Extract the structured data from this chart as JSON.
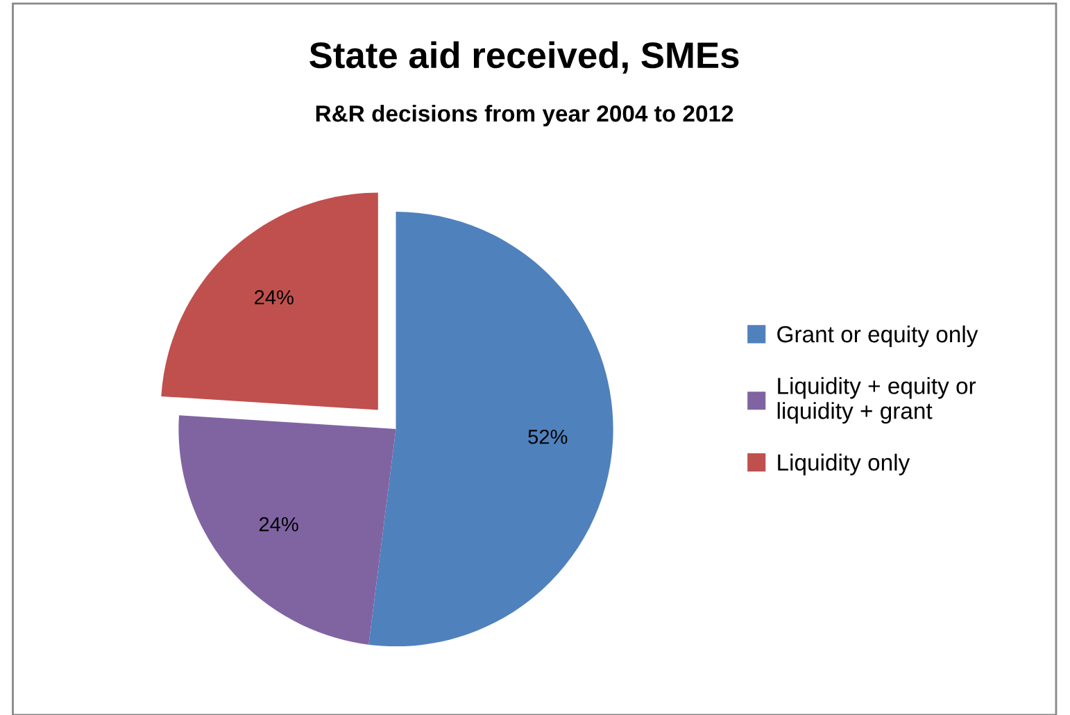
{
  "chart_data": {
    "type": "pie",
    "title": "State aid received, SMEs",
    "subtitle": "R&R decisions from year 2004 to 2012",
    "categories": [
      "Grant or equity only",
      "Liquidity + equity or liquidity + grant",
      "Liquidity only"
    ],
    "values": [
      52,
      24,
      24
    ],
    "value_labels": [
      "52%",
      "24%",
      "24%"
    ],
    "colors": [
      "#4f81bd",
      "#8064a2",
      "#c0504d"
    ],
    "legend": "right"
  }
}
